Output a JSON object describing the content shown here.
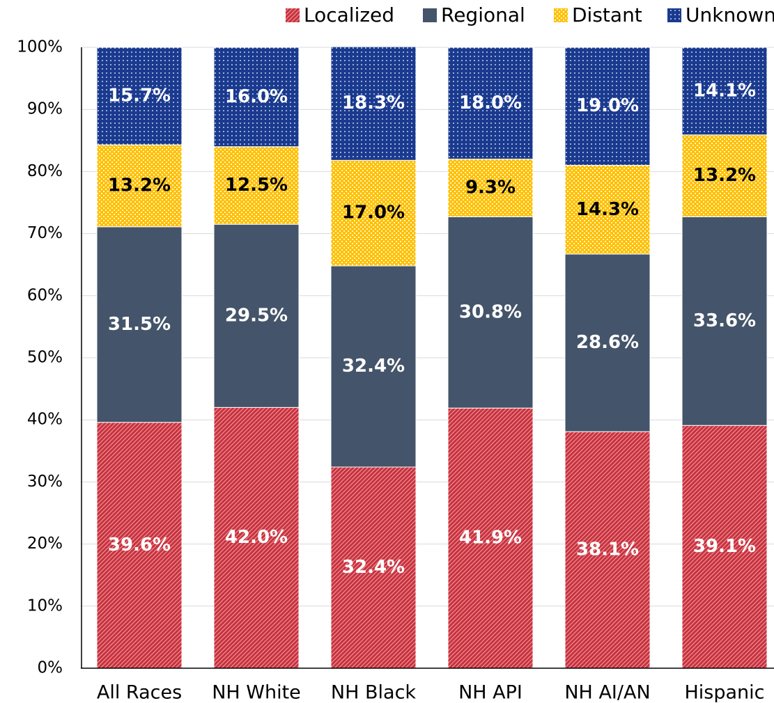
{
  "chart_data": {
    "type": "stacked_bar",
    "categories": [
      "All Races",
      "NH White",
      "NH Black",
      "NH API",
      "NH AI/AN",
      "Hispanic"
    ],
    "series": [
      {
        "name": "Localized",
        "color": "#c8323e",
        "values": [
          39.6,
          42.0,
          32.4,
          41.9,
          38.1,
          39.1
        ],
        "value_labels": [
          "39.6%",
          "42.0%",
          "32.4%",
          "41.9%",
          "38.1%",
          "39.1%"
        ]
      },
      {
        "name": "Regional",
        "color": "#44546a",
        "values": [
          31.5,
          29.5,
          32.4,
          30.8,
          28.6,
          33.6
        ],
        "value_labels": [
          "31.5%",
          "29.5%",
          "32.4%",
          "30.8%",
          "28.6%",
          "33.6%"
        ]
      },
      {
        "name": "Distant",
        "color": "#ffc000",
        "values": [
          13.2,
          12.5,
          17.0,
          9.3,
          14.3,
          13.2
        ],
        "value_labels": [
          "13.2%",
          "12.5%",
          "17.0%",
          "9.3%",
          "14.3%",
          "13.2%"
        ]
      },
      {
        "name": "Unknown",
        "color": "#1a3a8f",
        "values": [
          15.7,
          16.0,
          18.3,
          18.0,
          19.0,
          14.1
        ],
        "value_labels": [
          "15.7%",
          "16.0%",
          "18.3%",
          "18.0%",
          "19.0%",
          "14.1%"
        ]
      }
    ],
    "ylim": [
      0,
      100
    ],
    "yticks": [
      {
        "value": 0,
        "label": "0%"
      },
      {
        "value": 10,
        "label": "10%"
      },
      {
        "value": 20,
        "label": "20%"
      },
      {
        "value": 30,
        "label": "30%"
      },
      {
        "value": 40,
        "label": "40%"
      },
      {
        "value": 50,
        "label": "50%"
      },
      {
        "value": 60,
        "label": "60%"
      },
      {
        "value": 70,
        "label": "70%"
      },
      {
        "value": 80,
        "label": "80%"
      },
      {
        "value": 90,
        "label": "90%"
      },
      {
        "value": 100,
        "label": "100%"
      }
    ],
    "grid": true,
    "legend": "top"
  }
}
